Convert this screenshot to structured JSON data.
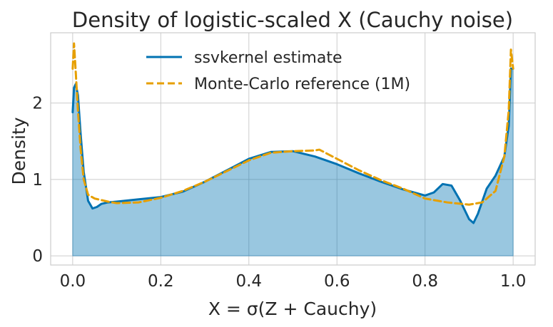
{
  "chart_data": {
    "type": "area",
    "title": "Density of logistic-scaled X (Cauchy noise)",
    "xlabel": "X = σ(Z + Cauchy)",
    "ylabel": "Density",
    "xlim": [
      -0.05,
      1.05
    ],
    "ylim": [
      -0.12,
      2.92
    ],
    "xticks": [
      0.0,
      0.2,
      0.4,
      0.6,
      0.8,
      1.0
    ],
    "xtick_labels": [
      "0.0",
      "0.2",
      "0.4",
      "0.6",
      "0.8",
      "1.0"
    ],
    "yticks": [
      0,
      1,
      2
    ],
    "ytick_labels": [
      "0",
      "1",
      "2"
    ],
    "grid": true,
    "legend_position": "top-center",
    "series": [
      {
        "name": "ssvkernel estimate",
        "color": "#0072b2",
        "style": "solid",
        "filled": true,
        "fill_color": "#0072b2",
        "x": [
          0.0,
          0.003,
          0.007,
          0.012,
          0.018,
          0.025,
          0.035,
          0.045,
          0.055,
          0.065,
          0.08,
          0.1,
          0.15,
          0.2,
          0.25,
          0.3,
          0.35,
          0.4,
          0.45,
          0.5,
          0.55,
          0.6,
          0.65,
          0.7,
          0.75,
          0.8,
          0.82,
          0.84,
          0.86,
          0.88,
          0.9,
          0.91,
          0.92,
          0.94,
          0.96,
          0.98,
          0.99,
          0.995,
          1.0
        ],
        "values": [
          1.88,
          2.2,
          2.25,
          2.1,
          1.6,
          1.1,
          0.72,
          0.62,
          0.64,
          0.68,
          0.7,
          0.71,
          0.74,
          0.77,
          0.84,
          0.97,
          1.12,
          1.27,
          1.36,
          1.37,
          1.3,
          1.2,
          1.08,
          0.97,
          0.87,
          0.79,
          0.83,
          0.94,
          0.92,
          0.72,
          0.48,
          0.43,
          0.55,
          0.88,
          1.05,
          1.3,
          1.7,
          2.45,
          2.45
        ]
      },
      {
        "name": "Monte-Carlo reference (1M)",
        "color": "#e69f00",
        "style": "dashed",
        "filled": false,
        "x": [
          0.0,
          0.003,
          0.007,
          0.012,
          0.018,
          0.025,
          0.035,
          0.05,
          0.08,
          0.1,
          0.15,
          0.2,
          0.25,
          0.3,
          0.35,
          0.4,
          0.45,
          0.5,
          0.55,
          0.56,
          0.6,
          0.65,
          0.7,
          0.75,
          0.8,
          0.85,
          0.9,
          0.93,
          0.96,
          0.98,
          0.99,
          0.995,
          1.0
        ],
        "values": [
          2.45,
          2.78,
          2.4,
          1.9,
          1.4,
          1.0,
          0.8,
          0.75,
          0.71,
          0.69,
          0.7,
          0.76,
          0.85,
          0.97,
          1.11,
          1.25,
          1.35,
          1.37,
          1.38,
          1.39,
          1.27,
          1.12,
          0.99,
          0.88,
          0.75,
          0.7,
          0.67,
          0.7,
          0.85,
          1.3,
          1.9,
          2.7,
          2.45
        ]
      }
    ]
  }
}
